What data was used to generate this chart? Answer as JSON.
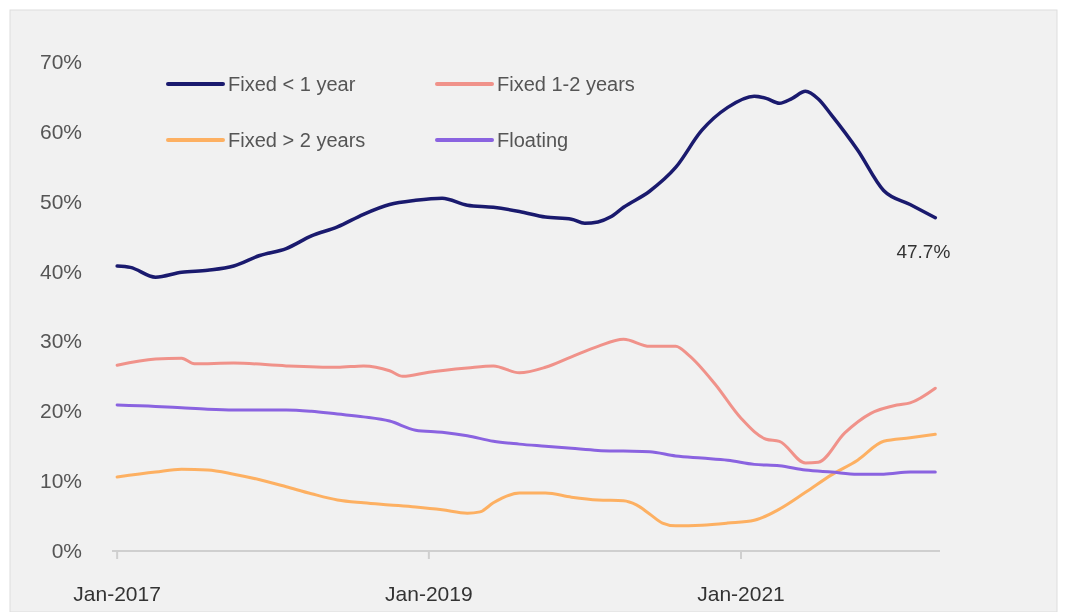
{
  "chart_data": {
    "type": "line",
    "legend": "top left",
    "marker": "none",
    "line_style": "solid",
    "grid": false,
    "xlim": [
      "2016-12-20",
      "2022-04-12"
    ],
    "xticks": [
      {
        "value": "2017-01",
        "label": "Jan-2017"
      },
      {
        "value": "2019-01",
        "label": "Jan-2019"
      },
      {
        "value": "2021-01",
        "label": "Jan-2021"
      }
    ],
    "ylim": [
      0,
      70
    ],
    "yticks": [
      {
        "value": 0,
        "label": "0%"
      },
      {
        "value": 10,
        "label": "10%"
      },
      {
        "value": 20,
        "label": "20%"
      },
      {
        "value": 30,
        "label": "30%"
      },
      {
        "value": 40,
        "label": "40%"
      },
      {
        "value": 50,
        "label": "50%"
      },
      {
        "value": 60,
        "label": "60%"
      },
      {
        "value": 70,
        "label": "70%"
      }
    ],
    "annotations": [
      {
        "text": "47.7%",
        "x": "2022-04",
        "y": 47.7
      }
    ],
    "series": [
      {
        "name": "Fixed < 1 year",
        "color": "#1a1a6e",
        "x": [
          "2017-01",
          "2017-02",
          "2017-04",
          "2017-06",
          "2017-08",
          "2017-10",
          "2017-12",
          "2018-02",
          "2018-04",
          "2018-06",
          "2018-08",
          "2018-10",
          "2018-12",
          "2019-02",
          "2019-04",
          "2019-06",
          "2019-08",
          "2019-10",
          "2019-12",
          "2020-01",
          "2020-02",
          "2020-03",
          "2020-04",
          "2020-06",
          "2020-08",
          "2020-10",
          "2020-12",
          "2021-02",
          "2021-03",
          "2021-04",
          "2021-05",
          "2021-06",
          "2021-07",
          "2021-08",
          "2021-10",
          "2021-12",
          "2022-02",
          "2022-04"
        ],
        "values": [
          40.8,
          40.6,
          39.2,
          39.9,
          40.2,
          40.8,
          42.3,
          43.3,
          45.1,
          46.4,
          48.2,
          49.6,
          50.2,
          50.5,
          49.5,
          49.2,
          48.6,
          47.8,
          47.5,
          46.9,
          47.1,
          47.8,
          49.2,
          51.5,
          54.9,
          60.2,
          63.5,
          65.1,
          64.8,
          64.1,
          64.8,
          65.8,
          64.7,
          62.4,
          57.4,
          51.6,
          49.6,
          47.7
        ]
      },
      {
        "name": "Fixed 1-2 years",
        "color": "#f0928a",
        "x": [
          "2017-01",
          "2017-04",
          "2017-06",
          "2017-07",
          "2017-10",
          "2018-02",
          "2018-06",
          "2018-08",
          "2018-10",
          "2018-11",
          "2019-01",
          "2019-04",
          "2019-06",
          "2019-08",
          "2019-10",
          "2019-12",
          "2020-02",
          "2020-04",
          "2020-06",
          "2020-08",
          "2020-09",
          "2020-11",
          "2021-01",
          "2021-03",
          "2021-04",
          "2021-06",
          "2021-07",
          "2021-09",
          "2021-11",
          "2022-01",
          "2022-02",
          "2022-04"
        ],
        "values": [
          26.6,
          27.5,
          27.6,
          26.8,
          26.9,
          26.5,
          26.3,
          26.5,
          25.8,
          25.0,
          25.6,
          26.2,
          26.5,
          25.5,
          26.3,
          27.8,
          29.3,
          30.3,
          29.3,
          29.3,
          28.0,
          23.9,
          19.0,
          16.0,
          15.7,
          12.6,
          12.7,
          16.9,
          19.7,
          20.9,
          21.2,
          23.3
        ]
      },
      {
        "name": "Fixed > 2 years",
        "color": "#fdb062",
        "x": [
          "2017-01",
          "2017-04",
          "2017-06",
          "2017-08",
          "2017-10",
          "2017-12",
          "2018-02",
          "2018-04",
          "2018-06",
          "2018-08",
          "2018-10",
          "2018-12",
          "2019-02",
          "2019-04",
          "2019-05",
          "2019-06",
          "2019-08",
          "2019-10",
          "2019-12",
          "2020-02",
          "2020-04",
          "2020-05",
          "2020-06",
          "2020-07",
          "2020-08",
          "2020-10",
          "2020-12",
          "2021-02",
          "2021-04",
          "2021-06",
          "2021-08",
          "2021-10",
          "2021-12",
          "2022-02",
          "2022-04"
        ],
        "values": [
          10.6,
          11.3,
          11.7,
          11.6,
          11.0,
          10.2,
          9.2,
          8.2,
          7.3,
          6.9,
          6.6,
          6.3,
          5.9,
          5.4,
          5.6,
          6.9,
          8.3,
          8.3,
          7.7,
          7.3,
          7.2,
          6.6,
          5.3,
          4.0,
          3.6,
          3.7,
          4.0,
          4.4,
          6.0,
          8.4,
          10.9,
          13.0,
          15.7,
          16.2,
          16.7
        ]
      },
      {
        "name": "Floating",
        "color": "#8a63e0",
        "x": [
          "2017-01",
          "2017-04",
          "2017-06",
          "2017-08",
          "2017-10",
          "2017-12",
          "2018-02",
          "2018-04",
          "2018-06",
          "2018-08",
          "2018-10",
          "2018-12",
          "2019-02",
          "2019-04",
          "2019-06",
          "2019-08",
          "2019-10",
          "2019-12",
          "2020-02",
          "2020-04",
          "2020-06",
          "2020-08",
          "2020-10",
          "2020-12",
          "2021-02",
          "2021-04",
          "2021-06",
          "2021-08",
          "2021-10",
          "2021-12",
          "2022-02",
          "2022-04"
        ],
        "values": [
          20.9,
          20.7,
          20.5,
          20.3,
          20.2,
          20.2,
          20.2,
          20.0,
          19.6,
          19.2,
          18.6,
          17.3,
          17.0,
          16.5,
          15.7,
          15.3,
          15.0,
          14.7,
          14.4,
          14.3,
          14.2,
          13.6,
          13.3,
          13.0,
          12.4,
          12.2,
          11.6,
          11.3,
          11.0,
          11.0,
          11.3,
          11.3
        ]
      }
    ]
  }
}
